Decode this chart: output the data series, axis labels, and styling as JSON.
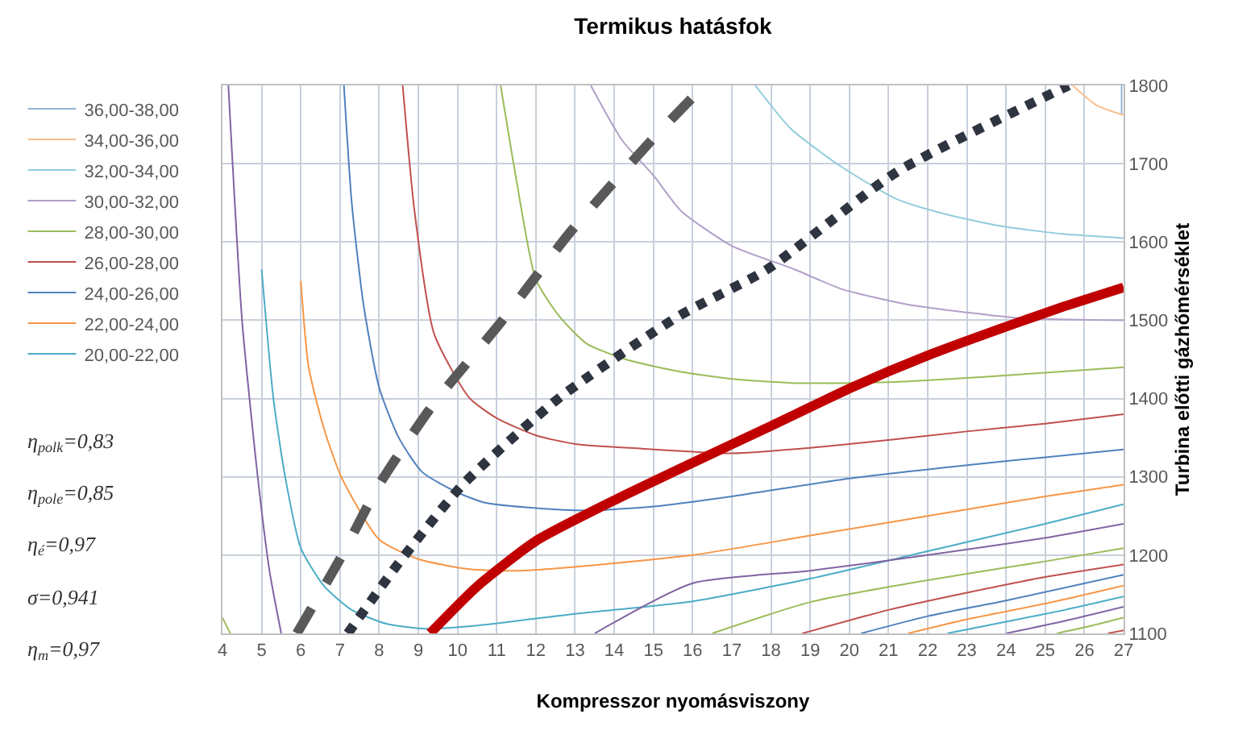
{
  "chart_data": {
    "type": "line",
    "title": "Termikus hatásfok",
    "xlabel": "Kompresszor nyomásviszony",
    "ylabel": "Turbina előtti gázhőmérséklet",
    "xlim": [
      4,
      27
    ],
    "xticks": [
      4,
      5,
      6,
      7,
      8,
      9,
      10,
      11,
      12,
      13,
      14,
      15,
      16,
      17,
      18,
      19,
      20,
      21,
      22,
      23,
      24,
      25,
      26,
      27
    ],
    "ylim": [
      1100,
      1800
    ],
    "yticks": [
      1100,
      1200,
      1300,
      1400,
      1500,
      1600,
      1700,
      1800
    ],
    "grid": true,
    "legend": "left",
    "marker": "none",
    "annotations": [
      "η$_{polk}$=0,83",
      "η$_{pole}$=0,85",
      "η$_{é}$=0,97",
      "σ=0,941",
      "η$_{m}$=0,97"
    ],
    "series": [
      {
        "name": "36,00-38,00",
        "color": "#95b3d7",
        "x": [
          26.95,
          26.95
        ],
        "values": [
          1762,
          1800
        ]
      },
      {
        "name": "34,00-36,00",
        "color": "#fabf8f",
        "x": [
          25.7,
          26.3,
          27
        ],
        "values": [
          1800,
          1775,
          1762
        ]
      },
      {
        "name": "32,00-34,00",
        "color": "#92cddc",
        "x": [
          17.6,
          18.5,
          19.8,
          21.2,
          22.5,
          23.9,
          25.5,
          27
        ],
        "values": [
          1800,
          1745,
          1696,
          1655,
          1635,
          1620,
          1610,
          1605
        ]
      },
      {
        "name": "30,00-32,00",
        "color": "#b1a0c7",
        "x": [
          13.4,
          14.2,
          15,
          15.7,
          17,
          18.6,
          19.8,
          21.5,
          23,
          24.3,
          27
        ],
        "values": [
          1800,
          1730,
          1685,
          1640,
          1595,
          1565,
          1540,
          1520,
          1510,
          1503,
          1500
        ]
      },
      {
        "name": "28,00-30,00",
        "color": "#9bbb59",
        "x": [
          11.1,
          11.5,
          12,
          12.6,
          13.3,
          14.3,
          15.6,
          17,
          18.5,
          20,
          21.5,
          23.5,
          25,
          27
        ],
        "values": [
          1800,
          1680,
          1552,
          1505,
          1470,
          1450,
          1435,
          1425,
          1420,
          1420,
          1422,
          1428,
          1433,
          1440
        ]
      },
      {
        "name": "26,00-28,00",
        "color": "#c0504d",
        "x": [
          8.6,
          8.9,
          9.4,
          10.3,
          11,
          12,
          13,
          14.7,
          16,
          17,
          19,
          21,
          23,
          25,
          27
        ],
        "values": [
          1800,
          1640,
          1483,
          1401,
          1375,
          1353,
          1342,
          1336,
          1332,
          1330,
          1337,
          1347,
          1358,
          1368,
          1380
        ]
      },
      {
        "name": "24,00-26,00",
        "color": "#4f81bd",
        "x": [
          7.1,
          7.3,
          7.6,
          8,
          8.5,
          9.1,
          10,
          10.7,
          12,
          13.3,
          15,
          17,
          20,
          23,
          25,
          27
        ],
        "values": [
          1800,
          1650,
          1520,
          1414,
          1350,
          1306,
          1280,
          1267,
          1260,
          1257,
          1262,
          1275,
          1298,
          1315,
          1325,
          1335
        ]
      },
      {
        "name": "22,00-24,00",
        "color": "#f79646",
        "x": [
          6,
          6.2,
          6.6,
          7.05,
          8,
          9,
          10.3,
          11.5,
          13,
          16,
          19,
          22,
          25,
          27
        ],
        "values": [
          1550,
          1440,
          1360,
          1298,
          1220,
          1195,
          1182,
          1180,
          1185,
          1200,
          1225,
          1250,
          1275,
          1290
        ]
      },
      {
        "name": "20,00-22,00",
        "color": "#4bacc6",
        "x": [
          5,
          5.3,
          5.6,
          6,
          6.6,
          7.3,
          8.2,
          9.2,
          10.5,
          13,
          16,
          19,
          22,
          25,
          27
        ],
        "values": [
          1565,
          1400,
          1300,
          1209,
          1160,
          1130,
          1112,
          1106,
          1110,
          1125,
          1141,
          1170,
          1205,
          1240,
          1265
        ]
      },
      {
        "color": "#8064a2",
        "x": [
          4.15,
          4.5,
          4.9,
          5.2,
          5.5
        ],
        "values": [
          1800,
          1500,
          1300,
          1180,
          1100
        ]
      },
      {
        "color": "#9bbb59",
        "x": [
          4,
          4.2
        ],
        "values": [
          1120,
          1100
        ]
      },
      {
        "color": "#8064a2",
        "x": [
          13.5,
          16,
          19,
          22,
          25,
          27
        ],
        "values": [
          1100,
          1164,
          1180,
          1200,
          1222,
          1240
        ]
      },
      {
        "color": "#9bbb59",
        "x": [
          16.5,
          19,
          22,
          25,
          27
        ],
        "values": [
          1100,
          1140,
          1168,
          1192,
          1209
        ]
      },
      {
        "color": "#c0504d",
        "x": [
          18.8,
          21,
          23,
          25,
          27
        ],
        "values": [
          1100,
          1130,
          1152,
          1172,
          1188
        ]
      },
      {
        "color": "#4f81bd",
        "x": [
          20.3,
          22,
          24,
          27
        ],
        "values": [
          1100,
          1122,
          1142,
          1175
        ]
      },
      {
        "color": "#f79646",
        "x": [
          21.5,
          23,
          25,
          27
        ],
        "values": [
          1100,
          1118,
          1138,
          1161
        ]
      },
      {
        "color": "#4bacc6",
        "x": [
          22.5,
          24,
          25.5,
          27
        ],
        "values": [
          1100,
          1115,
          1130,
          1147
        ]
      },
      {
        "color": "#8064a2",
        "x": [
          24,
          25.5,
          27
        ],
        "values": [
          1100,
          1116,
          1134
        ]
      },
      {
        "color": "#9bbb59",
        "x": [
          25.3,
          26.2,
          27
        ],
        "values": [
          1100,
          1110,
          1120
        ]
      },
      {
        "color": "#c0504d",
        "x": [
          26.6,
          27
        ],
        "values": [
          1100,
          1104
        ]
      },
      {
        "color": "#595959",
        "line_style": "dashed",
        "x": [
          5.9,
          7,
          8,
          9.4,
          11.1,
          12.9,
          15.1,
          16.3
        ],
        "values": [
          1100,
          1195,
          1290,
          1394,
          1497,
          1614,
          1738,
          1800
        ]
      },
      {
        "color": "#2e3440",
        "line_style": "dotted",
        "x": [
          7.2,
          8.5,
          10.15,
          12.6,
          15.6,
          17.9,
          21.2,
          25.6
        ],
        "values": [
          1100,
          1190,
          1291,
          1401,
          1504,
          1565,
          1689,
          1800
        ]
      },
      {
        "color": "#c00000",
        "line_style": "solid",
        "x": [
          9.3,
          10.5,
          12,
          14,
          16,
          18,
          20.1,
          22,
          23.9,
          25.5,
          27
        ],
        "values": [
          1100,
          1160,
          1218,
          1270,
          1318,
          1365,
          1415,
          1455,
          1490,
          1518,
          1542
        ]
      }
    ]
  }
}
